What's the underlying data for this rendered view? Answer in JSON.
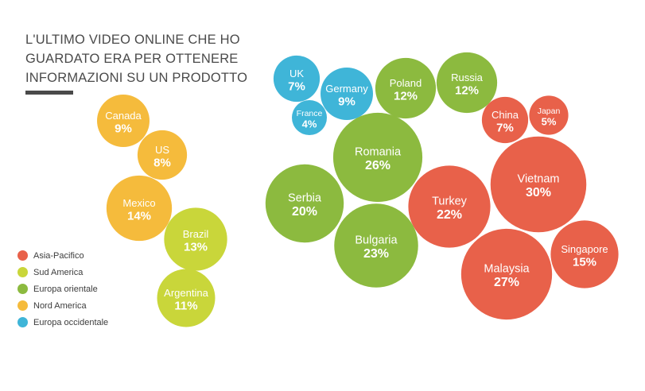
{
  "title_lines": [
    "L'ULTIMO VIDEO ONLINE CHE HO",
    "GUARDATO ERA PER OTTENERE",
    "INFORMAZIONI SU UN PRODOTTO"
  ],
  "legend": [
    {
      "label": "Asia-Pacifico",
      "color": "#e8614a"
    },
    {
      "label": "Sud America",
      "color": "#c9d63a"
    },
    {
      "label": "Europa orientale",
      "color": "#8cba3f"
    },
    {
      "label": "Nord America",
      "color": "#f5bb3c"
    },
    {
      "label": "Europa occidentale",
      "color": "#3fb5d8"
    }
  ],
  "chart_data": {
    "type": "bubble",
    "unit": "%",
    "series": [
      {
        "name": "Asia-Pacifico",
        "color": "#e8614a",
        "points": [
          {
            "label": "China",
            "value": 7
          },
          {
            "label": "Japan",
            "value": 5
          },
          {
            "label": "Vietnam",
            "value": 30
          },
          {
            "label": "Turkey",
            "value": 22
          },
          {
            "label": "Singapore",
            "value": 15
          },
          {
            "label": "Malaysia",
            "value": 27
          }
        ]
      },
      {
        "name": "Sud America",
        "color": "#c9d63a",
        "points": [
          {
            "label": "Brazil",
            "value": 13
          },
          {
            "label": "Argentina",
            "value": 11
          }
        ]
      },
      {
        "name": "Europa orientale",
        "color": "#8cba3f",
        "points": [
          {
            "label": "Poland",
            "value": 12
          },
          {
            "label": "Russia",
            "value": 12
          },
          {
            "label": "Romania",
            "value": 26
          },
          {
            "label": "Serbia",
            "value": 20
          },
          {
            "label": "Bulgaria",
            "value": 23
          }
        ]
      },
      {
        "name": "Nord America",
        "color": "#f5bb3c",
        "points": [
          {
            "label": "Canada",
            "value": 9
          },
          {
            "label": "US",
            "value": 8
          },
          {
            "label": "Mexico",
            "value": 14
          }
        ]
      },
      {
        "name": "Europa occidentale",
        "color": "#3fb5d8",
        "points": [
          {
            "label": "UK",
            "value": 7
          },
          {
            "label": "Germany",
            "value": 9
          },
          {
            "label": "France",
            "value": 4
          }
        ]
      }
    ]
  }
}
